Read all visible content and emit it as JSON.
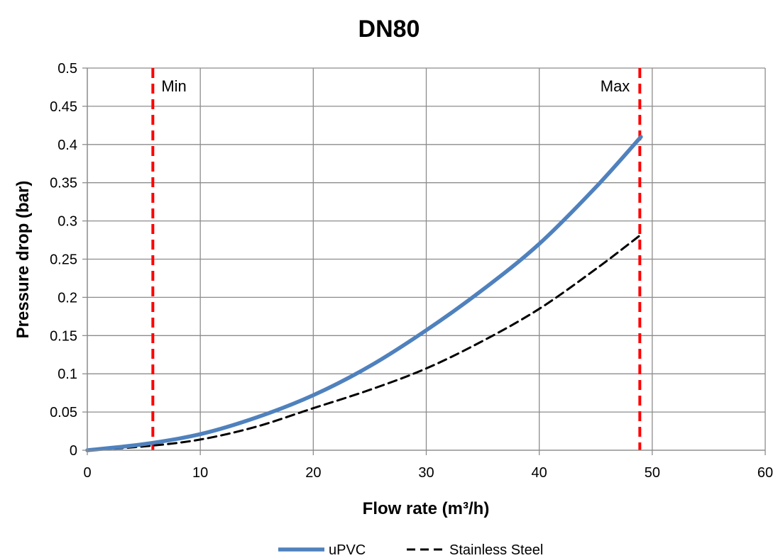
{
  "chart_data": {
    "type": "line",
    "title": "DN80",
    "xlabel": "Flow rate (m³/h)",
    "ylabel": "Pressure drop (bar)",
    "xlim": [
      0,
      60
    ],
    "ylim": [
      0,
      0.5
    ],
    "xticks": [
      0,
      10,
      20,
      30,
      40,
      50,
      60
    ],
    "xtick_labels": [
      "0",
      "10",
      "20",
      "30",
      "40",
      "50",
      "60"
    ],
    "yticks": [
      0,
      0.05,
      0.1,
      0.15,
      0.2,
      0.25,
      0.3,
      0.35,
      0.4,
      0.45,
      0.5
    ],
    "ytick_labels": [
      "0",
      "0.05",
      "0.1",
      "0.15",
      "0.2",
      "0.25",
      "0.3",
      "0.35",
      "0.4",
      "0.45",
      "0.5"
    ],
    "grid": true,
    "legend_position": "bottom",
    "series": [
      {
        "name": "uPVC",
        "color": "#4f81bd",
        "style": "solid",
        "x": [
          0,
          5,
          10,
          15,
          20,
          25,
          30,
          35,
          40,
          45,
          49
        ],
        "y": [
          0,
          0.008,
          0.021,
          0.043,
          0.072,
          0.11,
          0.157,
          0.21,
          0.27,
          0.344,
          0.41
        ]
      },
      {
        "name": "Stainless Steel",
        "color": "#000000",
        "style": "dashed",
        "x": [
          0,
          5,
          10,
          15,
          20,
          25,
          30,
          35,
          40,
          45,
          49
        ],
        "y": [
          0,
          0.005,
          0.014,
          0.031,
          0.055,
          0.079,
          0.107,
          0.143,
          0.185,
          0.237,
          0.282
        ]
      }
    ],
    "reference_lines": [
      {
        "label": "Min",
        "x": 5.8,
        "color": "#ff0000",
        "style": "dashed"
      },
      {
        "label": "Max",
        "x": 48.9,
        "color": "#ff0000",
        "style": "dashed"
      }
    ]
  }
}
